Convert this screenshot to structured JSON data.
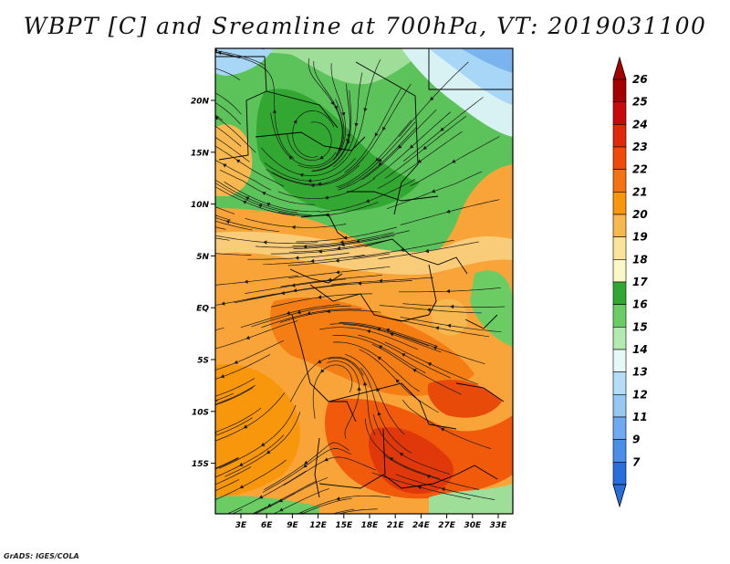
{
  "title": "WBPT [C] and Sreamline at 700hPa, VT: 2019031100",
  "credit": "GrADS: IGES/COLA",
  "map": {
    "lat_ticks": [
      "20N",
      "15N",
      "10N",
      "5N",
      "EQ",
      "5S",
      "10S",
      "15S"
    ],
    "lon_ticks": [
      "3E",
      "6E",
      "9E",
      "12E",
      "15E",
      "18E",
      "21E",
      "24E",
      "27E",
      "30E",
      "33E"
    ],
    "extent": {
      "lon": [
        0,
        35
      ],
      "lat": [
        -19,
        25
      ]
    }
  },
  "legend": {
    "levels": [
      {
        "label": "26",
        "color": "#a50000"
      },
      {
        "label": "25",
        "color": "#c80a0a"
      },
      {
        "label": "24",
        "color": "#e0280a"
      },
      {
        "label": "23",
        "color": "#f04a0a"
      },
      {
        "label": "22",
        "color": "#f47210"
      },
      {
        "label": "21",
        "color": "#f8960c"
      },
      {
        "label": "20",
        "color": "#f8b850"
      },
      {
        "label": "19",
        "color": "#fae49c"
      },
      {
        "label": "18",
        "color": "#faf8c4"
      },
      {
        "label": "17",
        "color": "#32a832"
      },
      {
        "label": "16",
        "color": "#6ccc64"
      },
      {
        "label": "15",
        "color": "#b4eab0"
      },
      {
        "label": "14",
        "color": "#e6f8f8"
      },
      {
        "label": "13",
        "color": "#b4def8"
      },
      {
        "label": "12",
        "color": "#96c8f4"
      },
      {
        "label": "11",
        "color": "#6eaaf0"
      },
      {
        "label": "9",
        "color": "#4a8ee6"
      },
      {
        "label": "7",
        "color": "#2a6edc"
      }
    ]
  }
}
